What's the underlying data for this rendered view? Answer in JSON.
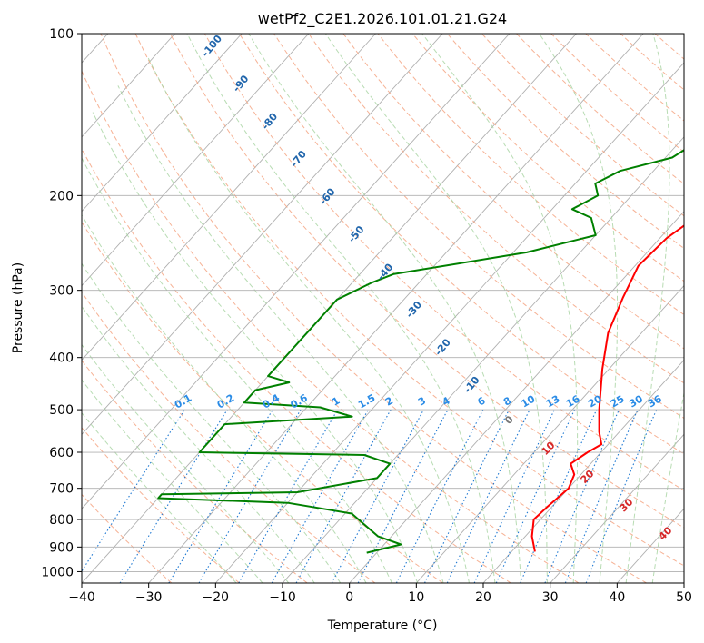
{
  "chart_data": {
    "type": "line",
    "title": "wetPf2_C2E1.2026.101.01.21.G24",
    "xlabel": "Temperature (°C)",
    "ylabel": "Pressure (hPa)",
    "xlim": [
      -40,
      50
    ],
    "ylim": [
      1050,
      100
    ],
    "y_scale": "log",
    "grid": true,
    "x_ticks": [
      "−40",
      "−30",
      "−20",
      "−10",
      "0",
      "10",
      "20",
      "30",
      "40",
      "50"
    ],
    "x_tick_values": [
      -40,
      -30,
      -20,
      -10,
      0,
      10,
      20,
      30,
      40,
      50
    ],
    "y_ticks": [
      "1000",
      "900",
      "800",
      "700",
      "600",
      "500",
      "400",
      "300",
      "200",
      "100"
    ],
    "y_tick_values": [
      1000,
      900,
      800,
      700,
      600,
      500,
      400,
      300,
      200,
      100
    ],
    "series": [
      {
        "color": "#ff0000",
        "points": [
          [
            23.5,
            918
          ],
          [
            21.0,
            860
          ],
          [
            19.0,
            800
          ],
          [
            19.3,
            760
          ],
          [
            20.0,
            700
          ],
          [
            19.0,
            660
          ],
          [
            17.0,
            630
          ],
          [
            18.0,
            600
          ],
          [
            19.0,
            580
          ],
          [
            17.0,
            550
          ],
          [
            14.0,
            500
          ],
          [
            9.0,
            420
          ],
          [
            5.0,
            360
          ],
          [
            2.5,
            310
          ],
          [
            0.5,
            270
          ],
          [
            1.0,
            240
          ],
          [
            2.5,
            220
          ],
          [
            4.0,
            200
          ],
          [
            5.0,
            180
          ],
          [
            5.0,
            160
          ],
          [
            2.5,
            140
          ],
          [
            1.0,
            130
          ],
          [
            2.0,
            115
          ],
          [
            3.5,
            100
          ]
        ]
      },
      {
        "color": "#008000",
        "points": [
          [
            -1.5,
            922
          ],
          [
            2.5,
            890
          ],
          [
            -2.0,
            860
          ],
          [
            -9.0,
            780
          ],
          [
            -20.0,
            745
          ],
          [
            -40.0,
            730
          ],
          [
            -40.0,
            718
          ],
          [
            -20.0,
            712
          ],
          [
            -10.0,
            670
          ],
          [
            -10.0,
            630
          ],
          [
            -15.0,
            607
          ],
          [
            -40.0,
            600
          ],
          [
            -40.0,
            532
          ],
          [
            -22.0,
            515
          ],
          [
            -28.0,
            495
          ],
          [
            -40.0,
            485
          ],
          [
            -40.0,
            460
          ],
          [
            -36.0,
            445
          ],
          [
            -40.0,
            433
          ],
          [
            -40.0,
            312
          ],
          [
            -37.0,
            290
          ],
          [
            -35.0,
            280
          ],
          [
            -18.0,
            255
          ],
          [
            -10.0,
            237
          ],
          [
            -13.0,
            220
          ],
          [
            -17.0,
            212
          ],
          [
            -15.0,
            200
          ],
          [
            -17.0,
            190
          ],
          [
            -15.0,
            180
          ],
          [
            -9.0,
            170
          ],
          [
            -6.0,
            150
          ],
          [
            -4.0,
            125
          ],
          [
            -2.0,
            110
          ],
          [
            -1.0,
            100
          ]
        ]
      }
    ],
    "mixing_ratio_labels": [
      "0.1",
      "0.2",
      "0.4",
      "0.6",
      "1",
      "1.5",
      "2",
      "3",
      "4",
      "6",
      "8",
      "10",
      "13",
      "16",
      "20",
      "25",
      "30",
      "36"
    ],
    "mixing_ratio_values": [
      0.1,
      0.2,
      0.4,
      0.6,
      1,
      1.5,
      2,
      3,
      4,
      6,
      8,
      10,
      13,
      16,
      20,
      25,
      30,
      36
    ],
    "dry_adiabat_labels": [
      "-100",
      "-90",
      "-80",
      "-70",
      "-60",
      "-50",
      "-40",
      "-30",
      "-20",
      "-10"
    ],
    "moist_adiabat_labels": [
      "0",
      "10",
      "20",
      "30",
      "40"
    ],
    "colors": {
      "isotherm": "#b0b0b0",
      "dry_adiabat": "#f4a582",
      "moist_adiabat": "#a6d3a0",
      "mixing_ratio": "#1e78d2",
      "dry_label": "#2166ac",
      "mixing_label": "#2b8ce6",
      "moist_label": "#d62728",
      "moist_label_zero": "#777777",
      "temperature": "#ff0000",
      "dewpoint": "#008000"
    }
  }
}
